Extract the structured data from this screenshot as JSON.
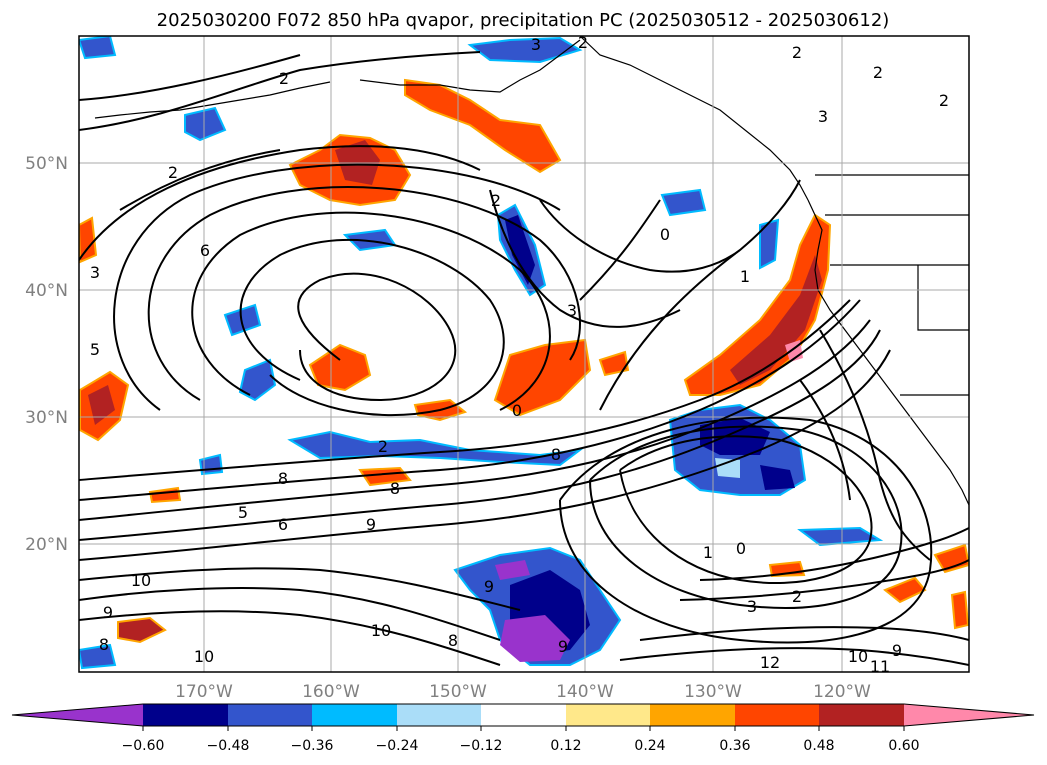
{
  "title": "2025030200 F072 850 hPa qvapor, precipitation PC (2025030512 - 2025030612)",
  "lat_labels": [
    "50°N",
    "40°N",
    "30°N",
    "20°N"
  ],
  "lon_labels": [
    "170°W",
    "160°W",
    "150°W",
    "140°W",
    "130°W",
    "120°W"
  ],
  "colorbar": {
    "colors": [
      "#9933cc",
      "#00008b",
      "#3355cc",
      "#00bbff",
      "#aaddf8",
      "#ffffff",
      "#ffe88a",
      "#ffa500",
      "#ff4500",
      "#b22222",
      "#ff88aa"
    ],
    "tick_labels": [
      "−0.60",
      "−0.48",
      "−0.36",
      "−0.24",
      "−0.12",
      "0.12",
      "0.24",
      "0.36",
      "0.48",
      "0.60"
    ]
  },
  "contour_labels": [
    {
      "text": "3"
    },
    {
      "text": "2"
    },
    {
      "text": "2"
    },
    {
      "text": "2"
    },
    {
      "text": "2"
    },
    {
      "text": "2"
    },
    {
      "text": "2"
    },
    {
      "text": "6"
    },
    {
      "text": "3"
    },
    {
      "text": "2"
    },
    {
      "text": "3"
    },
    {
      "text": "0"
    },
    {
      "text": "1"
    },
    {
      "text": "0"
    },
    {
      "text": "1"
    },
    {
      "text": "0"
    },
    {
      "text": "3"
    },
    {
      "text": "2"
    },
    {
      "text": "8"
    },
    {
      "text": "8"
    },
    {
      "text": "5"
    },
    {
      "text": "6"
    },
    {
      "text": "9"
    },
    {
      "text": "10"
    },
    {
      "text": "9"
    },
    {
      "text": "8"
    },
    {
      "text": "9"
    },
    {
      "text": "10"
    },
    {
      "text": "8"
    },
    {
      "text": "9"
    },
    {
      "text": "10"
    },
    {
      "text": "12"
    },
    {
      "text": "10"
    },
    {
      "text": "9"
    },
    {
      "text": "11"
    },
    {
      "text": "8"
    },
    {
      "text": "2"
    },
    {
      "text": "5"
    },
    {
      "text": "3"
    }
  ]
}
